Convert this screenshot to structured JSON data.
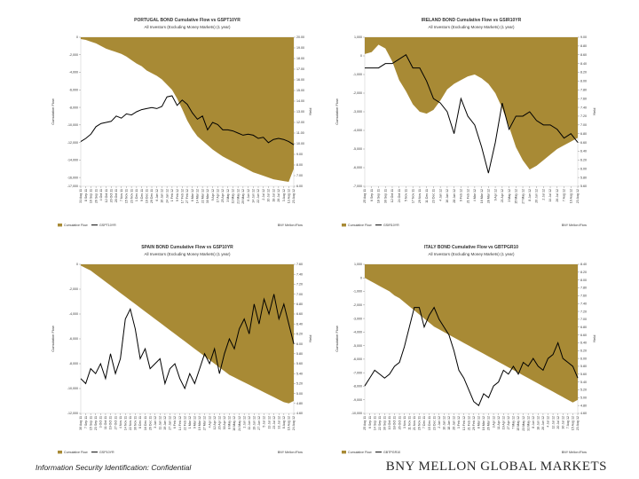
{
  "footer": {
    "confidential": "Information Security Identification: Confidential",
    "brand": "BNY MELLON GLOBAL MARKETS"
  },
  "colors": {
    "flow": "#a88a35",
    "yield": "#000000"
  },
  "chart_data": [
    {
      "type": "area",
      "title": "PORTUGAL BOND Cumulative Flow vs GSPT10YR",
      "subtitle": "All Investors (Excluding Money Markets) (1 year)",
      "ylabel": "Cumulative Flow",
      "y2label": "Yield",
      "legend": [
        "Cumulative Flow",
        "GSPT10YR"
      ],
      "source": "BNY Mellon iFlow",
      "ylim": [
        -17000,
        0
      ],
      "y2lim": [
        6,
        20
      ],
      "y_ticks": [
        "0",
        "-2,000",
        "-4,000",
        "-6,000",
        "-8,000",
        "-10,000",
        "-12,000",
        "-14,000",
        "-16,000",
        "-17,000"
      ],
      "y2_ticks": [
        "20.00",
        "19.00",
        "18.00",
        "17.00",
        "16.00",
        "15.00",
        "14.00",
        "13.00",
        "12.00",
        "11.00",
        "10.00",
        "9.00",
        "8.00",
        "7.00",
        "6.00"
      ],
      "x_ticks": [
        "31 Aug 11",
        "8 Sep 11",
        "16 Sep 11",
        "26 Sep 11",
        "4 Oct 11",
        "12 Oct 11",
        "20 Oct 11",
        "28 Oct 11",
        "7 Nov 11",
        "15 Nov 11",
        "23 Nov 11",
        "1 Dec 11",
        "9 Dec 11",
        "19 Dec 11",
        "29 Dec 11",
        "6 Jan 12",
        "16 Jan 12",
        "24 Jan 12",
        "1 Feb 12",
        "9 Feb 12",
        "17 Feb 12",
        "27 Feb 12",
        "6 Mar 12",
        "14 Mar 12",
        "22 Mar 12",
        "30 Mar 12",
        "9 Apr 12",
        "17 Apr 12",
        "25 Apr 12",
        "3 May 12",
        "11 May 12",
        "21 May 12",
        "29 May 12",
        "6 Jun 12",
        "14 Jun 12",
        "22 Jun 12",
        "2 Jul 12",
        "10 Jul 12",
        "18 Jul 12",
        "26 Jul 12",
        "3 Aug 12",
        "13 Aug 12",
        "23 Aug 12"
      ],
      "series": [
        {
          "name": "Cumulative Flow",
          "axis": "left",
          "values": [
            -200,
            -300,
            -500,
            -700,
            -1000,
            -1300,
            -1500,
            -1700,
            -1900,
            -2200,
            -2600,
            -3000,
            -3300,
            -3800,
            -4100,
            -4400,
            -4800,
            -5400,
            -6000,
            -7000,
            -8200,
            -9500,
            -10500,
            -11300,
            -11800,
            -12300,
            -12800,
            -13200,
            -13600,
            -13900,
            -14200,
            -14500,
            -14800,
            -15100,
            -15400,
            -15600,
            -15800,
            -16000,
            -16200,
            -16300,
            -16400,
            -16500,
            -15000
          ]
        },
        {
          "name": "GSPT10YR",
          "axis": "right",
          "values": [
            10.2,
            10.5,
            10.9,
            11.6,
            11.9,
            12.0,
            12.1,
            12.6,
            12.4,
            12.8,
            12.7,
            13.0,
            13.2,
            13.3,
            13.4,
            13.3,
            13.5,
            14.4,
            14.5,
            13.6,
            14.1,
            13.7,
            12.9,
            12.3,
            12.6,
            11.3,
            12.0,
            11.8,
            11.3,
            11.3,
            11.2,
            11.0,
            10.8,
            10.9,
            10.8,
            10.5,
            10.6,
            10.1,
            10.4,
            10.5,
            10.4,
            10.2,
            9.9
          ]
        }
      ]
    },
    {
      "type": "area",
      "title": "IRELAND BOND Cumulative Flow vs GSIR10YR",
      "subtitle": "All Investors (Excluding Money Markets) (1 year)",
      "ylabel": "Cumulative Flow",
      "y2label": "Yield",
      "legend": [
        "Cumulative Flow",
        "GSIR10YR"
      ],
      "source": "BNY Mellon iFlow",
      "ylim": [
        -7000,
        1000
      ],
      "y2lim": [
        5.6,
        9.0
      ],
      "y_ticks": [
        "1,000",
        "0",
        "-1,000",
        "-2,000",
        "-3,000",
        "-4,000",
        "-5,000",
        "-6,000",
        "-7,000"
      ],
      "y2_ticks": [
        "9.00",
        "8.80",
        "8.60",
        "8.40",
        "8.20",
        "8.00",
        "7.80",
        "7.60",
        "7.40",
        "7.20",
        "7.00",
        "6.80",
        "6.60",
        "6.40",
        "6.20",
        "6.00",
        "5.80",
        "5.60"
      ],
      "x_ticks": [
        "25 Aug 11",
        "6 Sep 11",
        "18 Sep 11",
        "30 Sep 11",
        "12 Oct 11",
        "24 Oct 11",
        "5 Nov 11",
        "17 Nov 11",
        "29 Nov 11",
        "11 Dec 11",
        "23 Dec 11",
        "4 Jan 12",
        "16 Jan 12",
        "28 Jan 12",
        "9 Feb 12",
        "21 Feb 12",
        "4 Mar 12",
        "16 Mar 12",
        "28 Mar 12",
        "9 Apr 12",
        "21 Apr 12",
        "3 May 12",
        "15 May 12",
        "27 May 12",
        "8 Jun 12",
        "20 Jun 12",
        "2 Jul 12",
        "14 Jul 12",
        "26 Jul 12",
        "7 Aug 12",
        "19 Aug 12",
        "23 Aug 12"
      ],
      "series": [
        {
          "name": "Cumulative Flow",
          "axis": "left",
          "values": [
            100,
            200,
            600,
            400,
            -300,
            -1300,
            -1900,
            -2600,
            -3000,
            -3100,
            -2900,
            -2400,
            -1800,
            -1500,
            -1300,
            -1100,
            -1000,
            -1200,
            -1500,
            -2000,
            -2800,
            -3800,
            -4900,
            -5600,
            -6100,
            -5900,
            -5600,
            -5300,
            -5000,
            -4800,
            -4600,
            -4400
          ]
        },
        {
          "name": "GSIR10YR",
          "axis": "right",
          "values": [
            8.3,
            8.3,
            8.3,
            8.4,
            8.4,
            8.5,
            8.6,
            8.3,
            8.3,
            8.0,
            7.6,
            7.5,
            7.3,
            6.8,
            7.6,
            7.2,
            7.0,
            6.5,
            5.9,
            6.6,
            7.5,
            6.9,
            7.2,
            7.2,
            7.3,
            7.1,
            7.0,
            7.0,
            6.9,
            6.7,
            6.8,
            6.6
          ]
        }
      ]
    },
    {
      "type": "area",
      "title": "SPAIN BOND Cumulative Flow vs GSP10YR",
      "subtitle": "All Investors (Excluding Money Markets) (1 year)",
      "ylabel": "Cumulative Flow",
      "y2label": "Yield",
      "legend": [
        "Cumulative Flow",
        "GSP10YR"
      ],
      "source": "BNY Mellon iFlow",
      "ylim": [
        -12000,
        0
      ],
      "y2lim": [
        4.6,
        7.6
      ],
      "y_ticks": [
        "0",
        "-2,000",
        "-4,000",
        "-6,000",
        "-8,000",
        "-10,000",
        "-12,000"
      ],
      "y2_ticks": [
        "4.60",
        "4.80",
        "5.00",
        "5.20",
        "5.40",
        "5.60",
        "5.80",
        "6.00",
        "6.20",
        "6.40",
        "6.60",
        "6.80",
        "7.00",
        "7.20",
        "7.40",
        "7.60"
      ],
      "x_ticks": [
        "30 Aug 11",
        "7 Sep 11",
        "15 Sep 11",
        "23 Sep 11",
        "3 Oct 11",
        "11 Oct 11",
        "19 Oct 11",
        "27 Oct 11",
        "4 Nov 11",
        "14 Nov 11",
        "22 Nov 11",
        "30 Nov 11",
        "8 Dec 11",
        "16 Dec 11",
        "26 Dec 11",
        "3 Jan 12",
        "11 Jan 12",
        "19 Jan 12",
        "27 Jan 12",
        "6 Feb 12",
        "14 Feb 12",
        "22 Feb 12",
        "1 Mar 12",
        "9 Mar 12",
        "19 Mar 12",
        "27 Mar 12",
        "4 Apr 12",
        "12 Apr 12",
        "20 Apr 12",
        "30 Apr 12",
        "8 May 12",
        "16 May 12",
        "24 May 12",
        "1 Jun 12",
        "11 Jun 12",
        "19 Jun 12",
        "27 Jun 12",
        "5 Jul 12",
        "13 Jul 12",
        "23 Jul 12",
        "31 Jul 12",
        "8 Aug 12",
        "16 Aug 12",
        "24 Aug 12"
      ],
      "series": [
        {
          "name": "Cumulative Flow",
          "axis": "left",
          "values": [
            -100,
            -300,
            -500,
            -800,
            -1100,
            -1400,
            -1700,
            -2000,
            -2300,
            -2600,
            -2900,
            -3200,
            -3500,
            -3800,
            -4100,
            -4400,
            -4700,
            -5000,
            -5300,
            -5600,
            -5900,
            -6200,
            -6500,
            -6800,
            -7100,
            -7400,
            -7700,
            -8000,
            -8300,
            -8600,
            -8900,
            -9100,
            -9300,
            -9500,
            -9700,
            -9900,
            -10100,
            -10300,
            -10500,
            -10700,
            -10900,
            -11100,
            -11200,
            -11000
          ]
        },
        {
          "name": "GSP10YR",
          "axis": "right",
          "values": [
            5.3,
            5.2,
            5.5,
            5.4,
            5.6,
            5.3,
            5.8,
            5.4,
            5.7,
            6.5,
            6.7,
            6.3,
            5.7,
            5.9,
            5.5,
            5.6,
            5.7,
            5.2,
            5.5,
            5.6,
            5.3,
            5.1,
            5.4,
            5.2,
            5.5,
            5.8,
            5.6,
            5.9,
            5.4,
            5.8,
            6.1,
            5.9,
            6.3,
            6.5,
            6.2,
            6.8,
            6.4,
            6.9,
            6.6,
            7.0,
            6.5,
            6.8,
            6.4,
            6.0
          ]
        }
      ]
    },
    {
      "type": "area",
      "title": "ITALY BOND Cumulative Flow vs GBTPGR10",
      "subtitle": "All Investors (Excluding Money Markets) (1 year)",
      "ylabel": "Cumulative Flow",
      "y2label": "Yield",
      "legend": [
        "Cumulative Flow",
        "GBTPGR10"
      ],
      "source": "BNY Mellon iFlow",
      "ylim": [
        -10000,
        1000
      ],
      "y2lim": [
        4.6,
        8.4
      ],
      "y_ticks": [
        "1,000",
        "0",
        "-1,000",
        "-2,000",
        "-3,000",
        "-4,000",
        "-5,000",
        "-6,000",
        "-7,000",
        "-8,000",
        "-9,000",
        "-10,000"
      ],
      "y2_ticks": [
        "4.60",
        "4.80",
        "5.00",
        "5.20",
        "5.40",
        "5.60",
        "5.80",
        "6.00",
        "6.20",
        "6.40",
        "6.60",
        "6.80",
        "7.00",
        "7.20",
        "7.40",
        "7.60",
        "7.80",
        "8.00",
        "8.20",
        "8.40"
      ],
      "x_ticks": [
        "25 Aug 11",
        "6 Sep 11",
        "14 Sep 11",
        "22 Sep 11",
        "30 Sep 11",
        "10 Oct 11",
        "18 Oct 11",
        "26 Oct 11",
        "3 Nov 11",
        "11 Nov 11",
        "21 Nov 11",
        "29 Nov 11",
        "7 Dec 11",
        "15 Dec 11",
        "23 Dec 11",
        "2 Jan 12",
        "10 Jan 12",
        "18 Jan 12",
        "26 Jan 12",
        "3 Feb 12",
        "13 Feb 12",
        "21 Feb 12",
        "29 Feb 12",
        "8 Mar 12",
        "16 Mar 12",
        "26 Mar 12",
        "3 Apr 12",
        "11 Apr 12",
        "19 Apr 12",
        "27 Apr 12",
        "7 May 12",
        "15 May 12",
        "23 May 12",
        "31 May 12",
        "8 Jun 12",
        "18 Jun 12",
        "26 Jun 12",
        "4 Jul 12",
        "12 Jul 12",
        "20 Jul 12",
        "30 Jul 12",
        "7 Aug 12",
        "15 Aug 12",
        "23 Aug 12"
      ],
      "series": [
        {
          "name": "Cumulative Flow",
          "axis": "left",
          "values": [
            0,
            -200,
            -400,
            -600,
            -800,
            -1000,
            -1300,
            -1500,
            -1800,
            -2100,
            -2400,
            -2700,
            -3000,
            -3300,
            -3600,
            -3800,
            -4000,
            -4200,
            -4400,
            -4600,
            -4800,
            -5000,
            -5200,
            -5400,
            -5600,
            -5800,
            -6000,
            -6200,
            -6400,
            -6600,
            -6800,
            -7000,
            -7200,
            -7400,
            -7600,
            -7800,
            -8000,
            -8200,
            -8400,
            -8600,
            -8800,
            -9000,
            -9200,
            -9000
          ]
        },
        {
          "name": "GBTPGR10",
          "axis": "right",
          "values": [
            5.3,
            5.5,
            5.7,
            5.6,
            5.5,
            5.6,
            5.8,
            5.9,
            6.3,
            6.8,
            7.3,
            7.3,
            6.8,
            7.1,
            7.3,
            7.0,
            6.8,
            6.6,
            6.2,
            5.7,
            5.5,
            5.2,
            4.9,
            4.8,
            5.1,
            5.0,
            5.3,
            5.4,
            5.7,
            5.6,
            5.8,
            5.6,
            5.9,
            5.8,
            6.0,
            5.8,
            5.7,
            6.0,
            6.1,
            6.4,
            6.0,
            5.9,
            5.8,
            5.5
          ]
        }
      ]
    }
  ]
}
